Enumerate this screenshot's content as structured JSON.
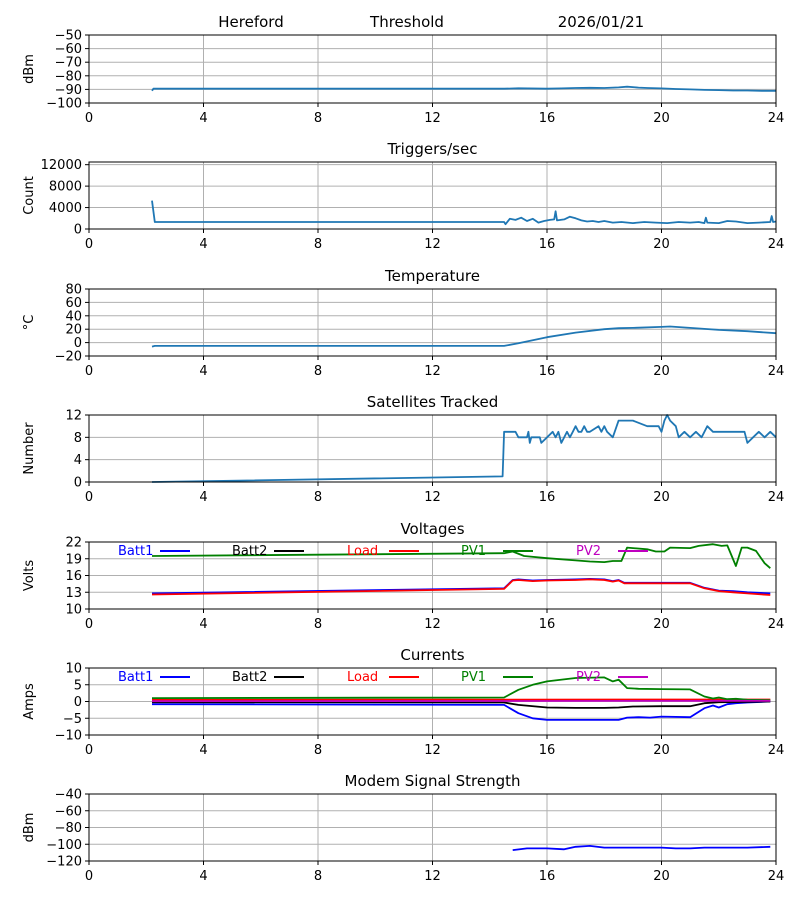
{
  "header": {
    "station": "Hereford",
    "mode": "Threshold",
    "date": "2026/01/21"
  },
  "colors": {
    "default_line": "#1f77b4",
    "batt1": "#0000ff",
    "batt2": "#000000",
    "load": "#ff0000",
    "pv1": "#008000",
    "pv2": "#bf00bf",
    "grid": "#b0b0b0"
  },
  "chart_data": [
    {
      "id": "threshold",
      "type": "line",
      "title": "",
      "xlabel": "",
      "ylabel": "dBm",
      "xlim": [
        0,
        24
      ],
      "ylim": [
        -100,
        -50
      ],
      "xticks": [
        "0",
        "4",
        "8",
        "12",
        "16",
        "20",
        "24"
      ],
      "yticks": [
        "−50",
        "−60",
        "−70",
        "−80",
        "−90",
        "−100"
      ],
      "ytick_values": [
        -50,
        -60,
        -70,
        -80,
        -90,
        -100
      ],
      "grid": true,
      "series": [
        {
          "name": "threshold",
          "color": "#1f77b4",
          "x": [
            2.2,
            2.25,
            14.5,
            15,
            16,
            16.5,
            17,
            17.5,
            18,
            18.5,
            18.8,
            19.2,
            19.5,
            20,
            20.5,
            21,
            21.5,
            22,
            22.5,
            23,
            23.5,
            24
          ],
          "y": [
            -91,
            -89.5,
            -89.5,
            -89.2,
            -89.5,
            -89.3,
            -89,
            -88.8,
            -89,
            -88.5,
            -88,
            -88.7,
            -89,
            -89.3,
            -89.7,
            -90,
            -90.4,
            -90.5,
            -90.8,
            -90.8,
            -91,
            -91
          ]
        }
      ]
    },
    {
      "id": "triggers",
      "type": "line",
      "title": "Triggers/sec",
      "ylabel": "Count",
      "xlim": [
        0,
        24
      ],
      "ylim": [
        0,
        12500
      ],
      "xticks": [
        "0",
        "4",
        "8",
        "12",
        "16",
        "20",
        "24"
      ],
      "yticks": [
        "12000",
        "8000",
        "4000",
        "0"
      ],
      "ytick_values": [
        12000,
        8000,
        4000,
        0
      ],
      "grid": true,
      "series": [
        {
          "name": "triggers",
          "color": "#1f77b4",
          "x": [
            2.2,
            2.3,
            14.5,
            14.55,
            14.7,
            14.9,
            15.1,
            15.3,
            15.5,
            15.7,
            15.9,
            16.1,
            16.25,
            16.3,
            16.35,
            16.6,
            16.8,
            17.0,
            17.2,
            17.4,
            17.6,
            17.8,
            18.0,
            18.3,
            18.6,
            19.0,
            19.4,
            19.8,
            20.2,
            20.6,
            21.0,
            21.3,
            21.5,
            21.55,
            21.6,
            22.0,
            22.3,
            22.6,
            23.0,
            23.4,
            23.8,
            23.85,
            23.9,
            24.0
          ],
          "y": [
            5300,
            1300,
            1300,
            900,
            1900,
            1700,
            2100,
            1500,
            1900,
            1200,
            1500,
            1700,
            1800,
            3300,
            1600,
            1800,
            2300,
            2000,
            1600,
            1400,
            1500,
            1300,
            1500,
            1200,
            1300,
            1100,
            1300,
            1200,
            1100,
            1300,
            1200,
            1300,
            1100,
            2100,
            1200,
            1100,
            1500,
            1400,
            1100,
            1200,
            1300,
            2400,
            1300,
            1400
          ]
        }
      ]
    },
    {
      "id": "temperature",
      "type": "line",
      "title": "Temperature",
      "ylabel": "°C",
      "xlim": [
        0,
        24
      ],
      "ylim": [
        -20,
        80
      ],
      "xticks": [
        "0",
        "4",
        "8",
        "12",
        "16",
        "20",
        "24"
      ],
      "yticks": [
        "80",
        "60",
        "40",
        "20",
        "0",
        "−20"
      ],
      "ytick_values": [
        80,
        60,
        40,
        20,
        0,
        -20
      ],
      "grid": true,
      "series": [
        {
          "name": "temperature",
          "color": "#1f77b4",
          "x": [
            2.2,
            2.3,
            14.5,
            15,
            16,
            17,
            18,
            18.5,
            19,
            20,
            20.3,
            21,
            22,
            23,
            24
          ],
          "y": [
            -6,
            -5,
            -5,
            -1,
            8,
            15,
            20,
            21.5,
            22,
            23.5,
            24,
            22,
            19,
            17,
            14
          ]
        }
      ]
    },
    {
      "id": "satellites",
      "type": "line",
      "title": "Satellites Tracked",
      "ylabel": "Number",
      "xlim": [
        0,
        24
      ],
      "ylim": [
        0,
        12
      ],
      "xticks": [
        "0",
        "4",
        "8",
        "12",
        "16",
        "20",
        "24"
      ],
      "yticks": [
        "12",
        "8",
        "4",
        "0"
      ],
      "ytick_values": [
        12,
        8,
        4,
        0
      ],
      "grid": true,
      "series": [
        {
          "name": "satellites",
          "color": "#1f77b4",
          "x": [
            2.2,
            14.45,
            14.5,
            14.9,
            15.0,
            15.3,
            15.35,
            15.4,
            15.45,
            15.75,
            15.8,
            16.2,
            16.3,
            16.4,
            16.5,
            16.6,
            16.7,
            16.8,
            16.9,
            17.0,
            17.1,
            17.2,
            17.3,
            17.4,
            17.5,
            17.8,
            17.9,
            18.0,
            18.1,
            18.3,
            18.5,
            19.0,
            19.5,
            19.9,
            20.0,
            20.1,
            20.2,
            20.3,
            20.5,
            20.6,
            20.8,
            21.0,
            21.2,
            21.4,
            21.6,
            21.8,
            22.5,
            22.9,
            23.0,
            23.2,
            23.4,
            23.6,
            23.8,
            24.0
          ],
          "y": [
            0,
            1,
            9,
            9,
            8,
            8,
            9,
            7,
            8,
            8,
            7,
            9,
            8,
            9,
            7,
            8,
            9,
            8,
            9,
            10,
            9,
            9,
            10,
            9,
            9,
            10,
            9,
            10,
            9,
            8,
            11,
            11,
            10,
            10,
            9,
            11,
            12,
            11,
            10,
            8,
            9,
            8,
            9,
            8,
            10,
            9,
            9,
            9,
            7,
            8,
            9,
            8,
            9,
            8
          ]
        }
      ]
    },
    {
      "id": "voltages",
      "type": "line",
      "title": "Voltages",
      "ylabel": "Volts",
      "xlim": [
        0,
        24
      ],
      "ylim": [
        10,
        22
      ],
      "xticks": [
        "0",
        "4",
        "8",
        "12",
        "16",
        "20",
        "24"
      ],
      "yticks": [
        "22",
        "19",
        "16",
        "13",
        "10"
      ],
      "ytick_values": [
        22,
        19,
        16,
        13,
        10
      ],
      "grid": true,
      "legend": "top",
      "series": [
        {
          "name": "Batt1",
          "color": "#0000ff",
          "x": [
            2.2,
            14.5,
            14.8,
            15.0,
            15.5,
            16,
            17,
            17.5,
            18,
            18.3,
            18.5,
            18.7,
            19,
            20,
            21,
            21.5,
            22,
            22.5,
            23,
            23.8
          ],
          "y": [
            12.8,
            13.7,
            15.2,
            15.3,
            15.1,
            15.2,
            15.3,
            15.4,
            15.3,
            15.0,
            15.2,
            14.7,
            14.7,
            14.7,
            14.7,
            13.8,
            13.3,
            13.2,
            13.0,
            12.8
          ]
        },
        {
          "name": "Batt2",
          "color": "#000000",
          "x": [],
          "y": []
        },
        {
          "name": "Load",
          "color": "#ff0000",
          "x": [
            2.2,
            14.5,
            14.8,
            15.0,
            15.5,
            16,
            17,
            17.5,
            18,
            18.3,
            18.5,
            18.7,
            19,
            20,
            21,
            21.5,
            22,
            22.5,
            23,
            23.8
          ],
          "y": [
            12.6,
            13.6,
            15.1,
            15.2,
            15.0,
            15.1,
            15.2,
            15.3,
            15.2,
            14.9,
            15.1,
            14.6,
            14.6,
            14.6,
            14.6,
            13.7,
            13.2,
            13.0,
            12.8,
            12.5
          ]
        },
        {
          "name": "PV1",
          "color": "#008000",
          "x": [
            2.2,
            14.5,
            14.8,
            15.2,
            16,
            17,
            17.5,
            18,
            18.3,
            18.6,
            18.8,
            19.5,
            19.8,
            20.1,
            20.3,
            21,
            21.3,
            21.8,
            22.1,
            22.3,
            22.6,
            22.8,
            23.0,
            23.3,
            23.6,
            23.8
          ],
          "y": [
            19.5,
            20.0,
            20.3,
            19.5,
            19.1,
            18.7,
            18.5,
            18.4,
            18.6,
            18.6,
            21.0,
            20.7,
            20.3,
            20.3,
            21.0,
            20.9,
            21.3,
            21.6,
            21.3,
            21.4,
            17.7,
            21.0,
            21.0,
            20.4,
            18.2,
            17.3
          ]
        },
        {
          "name": "PV2",
          "color": "#bf00bf",
          "x": [],
          "y": []
        }
      ]
    },
    {
      "id": "currents",
      "type": "line",
      "title": "Currents",
      "ylabel": "Amps",
      "xlim": [
        0,
        24
      ],
      "ylim": [
        -10,
        10
      ],
      "xticks": [
        "0",
        "4",
        "8",
        "12",
        "16",
        "20",
        "24"
      ],
      "yticks": [
        "10",
        "5",
        "0",
        "−5",
        "−10"
      ],
      "ytick_values": [
        10,
        5,
        0,
        -5,
        -10
      ],
      "grid": true,
      "legend": "top",
      "series": [
        {
          "name": "Batt1",
          "color": "#0000ff",
          "x": [
            2.2,
            14.5,
            15.0,
            15.5,
            16,
            17,
            18,
            18.5,
            18.8,
            19.2,
            19.6,
            20,
            21,
            21.5,
            21.8,
            22.0,
            22.3,
            22.6,
            23,
            23.8
          ],
          "y": [
            -0.8,
            -1.0,
            -3.5,
            -5.0,
            -5.5,
            -5.5,
            -5.5,
            -5.5,
            -4.8,
            -4.7,
            -4.8,
            -4.5,
            -4.7,
            -2.0,
            -1.2,
            -1.8,
            -0.8,
            -0.5,
            -0.3,
            0
          ]
        },
        {
          "name": "Batt2",
          "color": "#000000",
          "x": [
            2.2,
            14.5,
            15.0,
            16,
            17,
            18,
            18.5,
            19,
            20,
            21,
            21.5,
            22,
            23,
            23.8
          ],
          "y": [
            -0.2,
            -0.3,
            -1.0,
            -1.8,
            -1.9,
            -1.9,
            -1.8,
            -1.5,
            -1.4,
            -1.4,
            -0.5,
            -0.2,
            -0.1,
            0
          ]
        },
        {
          "name": "Load",
          "color": "#ff0000",
          "x": [
            2.2,
            23.8
          ],
          "y": [
            0.5,
            0.6
          ]
        },
        {
          "name": "PV1",
          "color": "#008000",
          "x": [
            2.2,
            14.5,
            15.0,
            15.5,
            16,
            17,
            18,
            18.3,
            18.5,
            18.8,
            19.2,
            20,
            21,
            21.5,
            21.8,
            22.0,
            22.3,
            22.6,
            23,
            23.8
          ],
          "y": [
            1.0,
            1.2,
            3.5,
            5.0,
            6.0,
            7.0,
            7.2,
            6.0,
            6.5,
            4.0,
            3.8,
            3.7,
            3.6,
            1.5,
            0.9,
            1.2,
            0.7,
            0.8,
            0.5,
            0.4
          ]
        },
        {
          "name": "PV2",
          "color": "#bf00bf",
          "x": [
            2.2,
            23.8
          ],
          "y": [
            0.1,
            0.2
          ]
        }
      ]
    },
    {
      "id": "modem",
      "type": "line",
      "title": "Modem Signal Strength",
      "ylabel": "dBm",
      "xlim": [
        0,
        24
      ],
      "ylim": [
        -120,
        -40
      ],
      "xticks": [
        "0",
        "4",
        "8",
        "12",
        "16",
        "20",
        "24"
      ],
      "yticks": [
        "−40",
        "−60",
        "−80",
        "−100",
        "−120"
      ],
      "ytick_values": [
        -40,
        -60,
        -80,
        -100,
        -120
      ],
      "grid": true,
      "series": [
        {
          "name": "modem",
          "color": "#0000ff",
          "x": [
            14.8,
            15.3,
            16.0,
            16.6,
            17.0,
            17.5,
            18.0,
            19.0,
            20.0,
            20.5,
            21.0,
            21.5,
            22.0,
            23.0,
            23.8
          ],
          "y": [
            -107,
            -105,
            -105,
            -106,
            -103,
            -102,
            -104,
            -104,
            -104,
            -105,
            -105,
            -104,
            -104,
            -104,
            -103
          ]
        }
      ]
    }
  ]
}
